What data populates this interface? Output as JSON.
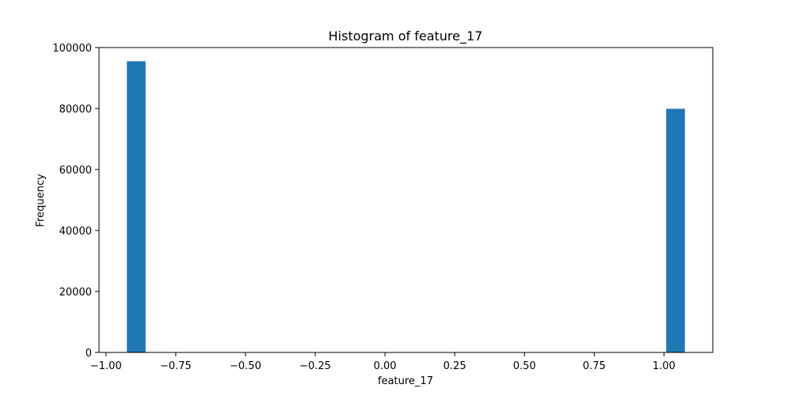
{
  "chart_data": {
    "type": "bar",
    "title": "Histogram of feature_17",
    "xlabel": "feature_17",
    "ylabel": "Frequency",
    "xlim": [
      -1.025,
      1.175
    ],
    "ylim": [
      0,
      100000
    ],
    "x_ticks": [
      -1.0,
      -0.75,
      -0.5,
      -0.25,
      0.0,
      0.25,
      0.5,
      0.75,
      1.0
    ],
    "x_tick_labels": [
      "−1.00",
      "−0.75",
      "−0.50",
      "−0.25",
      "0.00",
      "0.25",
      "0.50",
      "0.75",
      "1.00"
    ],
    "y_ticks": [
      0,
      20000,
      40000,
      60000,
      80000,
      100000
    ],
    "y_tick_labels": [
      "0",
      "20000",
      "40000",
      "60000",
      "80000",
      "100000"
    ],
    "bars": [
      {
        "x0": -0.925,
        "x1": -0.858,
        "value": 95500
      },
      {
        "x0": 1.008,
        "x1": 1.075,
        "value": 79900
      }
    ],
    "bar_color": "#1f77b4",
    "grid": false,
    "legend": "none"
  }
}
